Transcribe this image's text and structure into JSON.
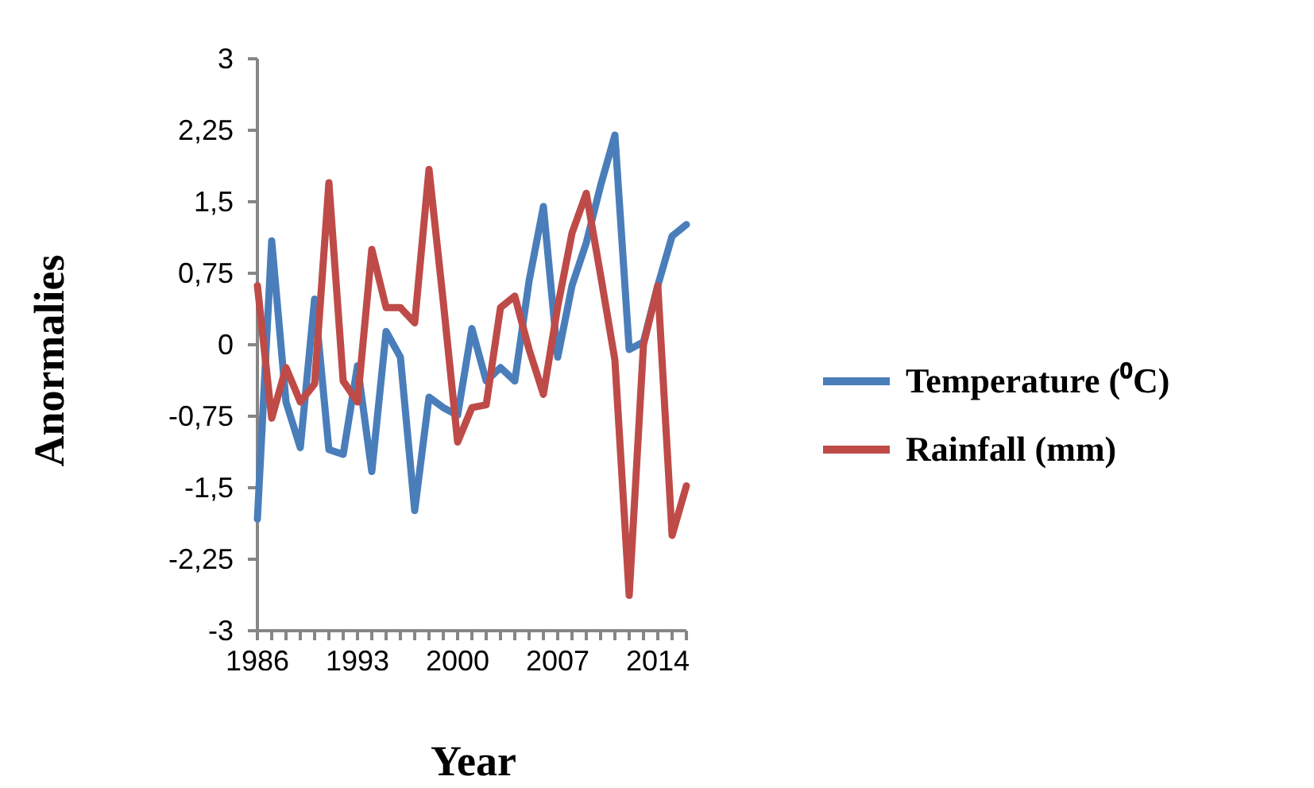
{
  "chart_data": {
    "type": "line",
    "xlabel": "Year",
    "ylabel": "Anormalies",
    "categories": [
      "1986",
      null,
      null,
      null,
      null,
      null,
      null,
      "1993",
      null,
      null,
      null,
      null,
      null,
      null,
      "2000",
      null,
      null,
      null,
      null,
      null,
      null,
      "2007",
      null,
      null,
      null,
      null,
      null,
      null,
      "2014",
      null,
      null
    ],
    "series": [
      {
        "name": "Temperature (⁰C)",
        "color": "#4a7ebb",
        "values": [
          -1.83,
          1.09,
          -0.6,
          -1.08,
          0.48,
          -1.1,
          -1.15,
          -0.22,
          -1.33,
          0.14,
          -0.13,
          -1.74,
          -0.55,
          -0.66,
          -0.74,
          0.17,
          -0.38,
          -0.24,
          -0.38,
          0.67,
          1.45,
          -0.13,
          0.62,
          1.07,
          1.67,
          2.2,
          -0.05,
          0.03,
          0.62,
          1.14,
          1.26
        ]
      },
      {
        "name": "Rainfall (mm)",
        "color": "#be4b48",
        "values": [
          0.62,
          -0.77,
          -0.24,
          -0.6,
          -0.41,
          1.7,
          -0.38,
          -0.6,
          1.0,
          0.39,
          0.39,
          0.23,
          1.84,
          0.45,
          -1.02,
          -0.66,
          -0.63,
          0.39,
          0.51,
          -0.05,
          -0.52,
          0.4,
          1.17,
          1.59,
          0.73,
          -0.16,
          -2.63,
          0.0,
          0.62,
          -2.0,
          -1.48
        ]
      }
    ],
    "ylim": [
      -3,
      3
    ],
    "yticks": [
      -3,
      {
        "value": -2.25,
        "label": "-2,25"
      },
      {
        "value": -1.5,
        "label": "-1,5"
      },
      {
        "value": -0.75,
        "label": "-0,75"
      },
      0,
      {
        "value": 0.75,
        "label": "0,75"
      },
      {
        "value": 1.5,
        "label": "1,5"
      },
      {
        "value": 2.25,
        "label": "2,25"
      },
      3
    ],
    "grid": false,
    "legend": "right",
    "marker": "none",
    "line_style": "solid"
  }
}
